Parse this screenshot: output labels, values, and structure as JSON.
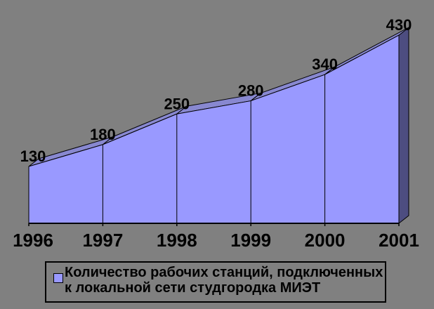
{
  "background_color": "#808080",
  "chart_data": {
    "type": "area",
    "projection": "3d",
    "title": "",
    "xlabel": "",
    "ylabel": "",
    "categories": [
      "1996",
      "1997",
      "1998",
      "1999",
      "2000",
      "2001"
    ],
    "values": [
      130,
      180,
      250,
      280,
      340,
      430
    ],
    "series": [
      {
        "name": "Количество рабочих станций, подключенных к локальной сети студгородка МИЭТ",
        "values": [
          130,
          180,
          250,
          280,
          340,
          430
        ]
      }
    ],
    "ylim": [
      0,
      430
    ],
    "grid": false,
    "y_axis_visible": false,
    "data_labels_visible": true,
    "legend_position": "bottom",
    "colors": {
      "area_front": "#9999FF",
      "area_top": "#8888D0",
      "area_side": "#4D4D80",
      "outline": "#000000",
      "label_color": "#000000",
      "axis_color": "#000000"
    }
  },
  "legend": {
    "swatch_color": "#9999FF",
    "line1": "Количество рабочих станций, подключенных",
    "line2": "к локальной сети студгородка МИЭТ"
  }
}
